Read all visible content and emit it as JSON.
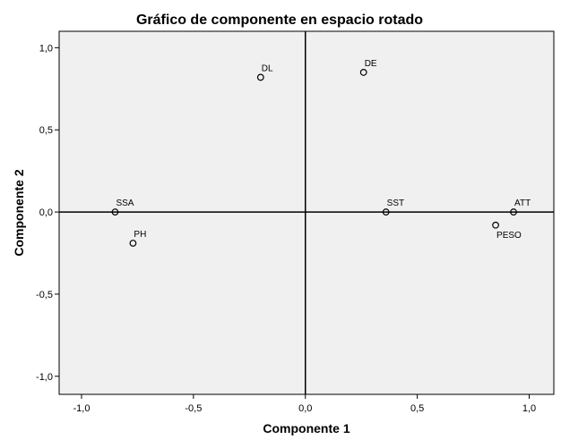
{
  "chart_data": {
    "type": "scatter",
    "title": "Gráfico de componente en espacio rotado",
    "xlabel": "Componente 1",
    "ylabel": "Componente 2",
    "xlim": [
      -1.1,
      1.11
    ],
    "ylim": [
      -1.11,
      1.1
    ],
    "xticks": [
      -1.0,
      -0.5,
      0.0,
      0.5,
      1.0
    ],
    "xtick_labels": [
      "-1,0",
      "-0,5",
      "0,0",
      "0,5",
      "1,0"
    ],
    "yticks": [
      1.0,
      0.5,
      0.0,
      -0.5,
      -1.0
    ],
    "ytick_labels": [
      "1,0",
      "0,5",
      "0,0",
      "-0,5",
      "-1,0"
    ],
    "grid": false,
    "reference_lines": {
      "x": 0,
      "y": 0
    },
    "colors": {
      "plot_background": "#f0f0f0",
      "frame": "#000000",
      "marker": "#000000"
    },
    "points": [
      {
        "label": "DL",
        "x": -0.2,
        "y": 0.82,
        "label_pos": "upper-right"
      },
      {
        "label": "DE",
        "x": 0.26,
        "y": 0.85,
        "label_pos": "upper-right"
      },
      {
        "label": "SSA",
        "x": -0.85,
        "y": 0.0,
        "label_pos": "upper-right"
      },
      {
        "label": "PH",
        "x": -0.77,
        "y": -0.19,
        "label_pos": "upper-right"
      },
      {
        "label": "SST",
        "x": 0.36,
        "y": 0.0,
        "label_pos": "upper-right"
      },
      {
        "label": "ATT",
        "x": 0.93,
        "y": 0.0,
        "label_pos": "upper-right"
      },
      {
        "label": "PESO",
        "x": 0.85,
        "y": -0.08,
        "label_pos": "lower-right"
      }
    ]
  }
}
